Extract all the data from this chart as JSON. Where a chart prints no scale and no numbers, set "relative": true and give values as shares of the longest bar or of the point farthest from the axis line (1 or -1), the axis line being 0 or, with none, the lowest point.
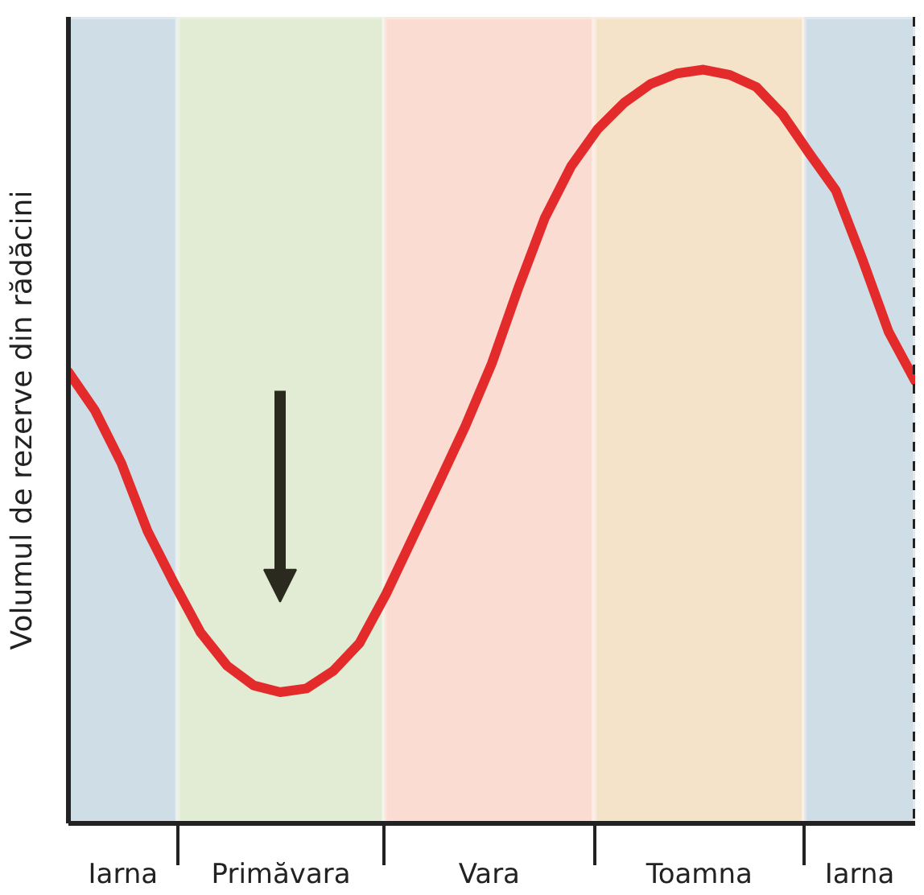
{
  "chart_data": {
    "type": "line",
    "relative": true,
    "ylabel": "Volumul de rezerve din rădăcini",
    "categories": [
      null,
      null,
      null,
      null,
      null,
      null,
      null,
      null,
      null,
      null,
      null,
      null,
      null,
      null,
      null,
      null,
      null,
      null,
      null,
      null,
      null,
      null,
      null,
      null,
      null,
      null,
      null,
      null,
      null,
      null,
      null,
      null,
      null
    ],
    "series": [
      {
        "color": "#e32b2b",
        "values": [
          0.599,
          0.548,
          0.478,
          0.387,
          0.318,
          0.253,
          0.209,
          0.183,
          0.174,
          0.179,
          0.202,
          0.239,
          0.304,
          0.378,
          0.452,
          0.527,
          0.61,
          0.71,
          0.803,
          0.872,
          0.921,
          0.956,
          0.981,
          0.995,
          1.0,
          0.993,
          0.977,
          0.94,
          0.889,
          0.84,
          0.749,
          0.652,
          0.587
        ]
      }
    ],
    "annotations": [
      "Iarna",
      "Primăvara",
      "Vara",
      "Toamna",
      "Iarna"
    ],
    "marker": "none",
    "line_style": "solid"
  }
}
